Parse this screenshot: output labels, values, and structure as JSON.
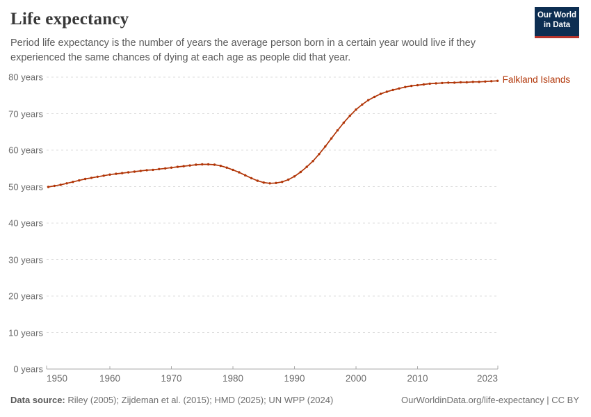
{
  "header": {
    "title": "Life expectancy",
    "subtitle_line1": "Period life expectancy is the number of years the average person born in a certain year would live if they",
    "subtitle_line2": "experienced the same chances of dying at each age as people did that year."
  },
  "logo": {
    "line1": "Our World",
    "line2": "in Data",
    "bg_color": "#0d2e52",
    "bar_color": "#b5342c"
  },
  "chart_data": {
    "type": "line",
    "title": "Life expectancy",
    "xlabel": "",
    "ylabel": "",
    "x_range": [
      1950,
      2023
    ],
    "ylim": [
      0,
      80
    ],
    "grid": "dashed-horizontal",
    "legend_position": "end-of-line",
    "xticks": [
      1950,
      1960,
      1970,
      1980,
      1990,
      2000,
      2010,
      2023
    ],
    "yticks": [
      {
        "value": 0,
        "label": "0 years"
      },
      {
        "value": 10,
        "label": "10 years"
      },
      {
        "value": 20,
        "label": "20 years"
      },
      {
        "value": 30,
        "label": "30 years"
      },
      {
        "value": 40,
        "label": "40 years"
      },
      {
        "value": 50,
        "label": "50 years"
      },
      {
        "value": 60,
        "label": "60 years"
      },
      {
        "value": 70,
        "label": "70 years"
      },
      {
        "value": 80,
        "label": "80 years"
      }
    ],
    "series": [
      {
        "name": "Falkland Islands",
        "color": "#B13507",
        "years": [
          1950,
          1951,
          1952,
          1953,
          1954,
          1955,
          1956,
          1957,
          1958,
          1959,
          1960,
          1961,
          1962,
          1963,
          1964,
          1965,
          1966,
          1967,
          1968,
          1969,
          1970,
          1971,
          1972,
          1973,
          1974,
          1975,
          1976,
          1977,
          1978,
          1979,
          1980,
          1981,
          1982,
          1983,
          1984,
          1985,
          1986,
          1987,
          1988,
          1989,
          1990,
          1991,
          1992,
          1993,
          1994,
          1995,
          1996,
          1997,
          1998,
          1999,
          2000,
          2001,
          2002,
          2003,
          2004,
          2005,
          2006,
          2007,
          2008,
          2009,
          2010,
          2011,
          2012,
          2013,
          2014,
          2015,
          2016,
          2017,
          2018,
          2019,
          2020,
          2021,
          2022,
          2023
        ],
        "values": [
          49.9,
          50.2,
          50.5,
          50.9,
          51.3,
          51.7,
          52.1,
          52.4,
          52.7,
          53.0,
          53.3,
          53.5,
          53.7,
          53.9,
          54.1,
          54.3,
          54.5,
          54.6,
          54.8,
          55.0,
          55.2,
          55.4,
          55.6,
          55.8,
          56.0,
          56.1,
          56.1,
          56.0,
          55.7,
          55.2,
          54.6,
          53.9,
          53.1,
          52.3,
          51.6,
          51.1,
          50.9,
          51.0,
          51.3,
          51.9,
          52.8,
          54.0,
          55.4,
          57.0,
          58.9,
          61.0,
          63.2,
          65.4,
          67.5,
          69.4,
          71.1,
          72.5,
          73.7,
          74.6,
          75.4,
          76.0,
          76.5,
          76.9,
          77.3,
          77.6,
          77.8,
          78.0,
          78.2,
          78.3,
          78.4,
          78.5,
          78.5,
          78.6,
          78.6,
          78.7,
          78.7,
          78.8,
          78.9,
          79.0
        ]
      }
    ],
    "colors": {
      "gridline": "#dcdcdc",
      "axis": "#a8a8a8",
      "tick_label": "#6b6b6b"
    }
  },
  "footer": {
    "source_label": "Data source:",
    "source_text": " Riley (2005); Zijdeman et al. (2015); HMD (2025); UN WPP (2024)",
    "right_text": "OurWorldinData.org/life-expectancy | CC BY"
  }
}
